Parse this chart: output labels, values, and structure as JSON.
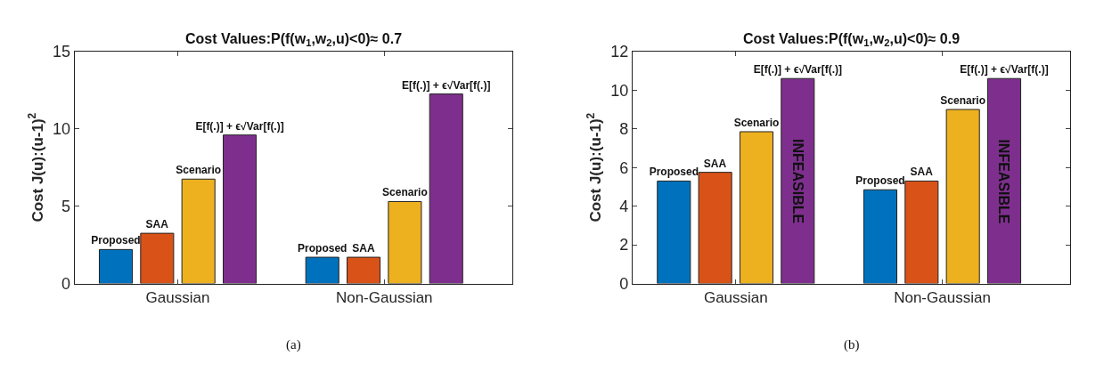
{
  "chart_data": [
    {
      "type": "bar",
      "title": "Cost Values:P(f(w$_{1}$,w$_{2}$,u)<0)≈ 0.7",
      "ylabel": "Cost J(u):(u-1)$^{2}$",
      "categories": [
        "Gaussian",
        "Non-Gaussian"
      ],
      "series": [
        {
          "name": "Proposed",
          "color": "#0072bd",
          "values": [
            2.2,
            1.7
          ]
        },
        {
          "name": "SAA",
          "color": "#d95319",
          "values": [
            3.25,
            1.7
          ]
        },
        {
          "name": "Scenario",
          "color": "#edb120",
          "values": [
            6.75,
            5.3
          ]
        },
        {
          "name": "E[f(.)] + ϵ√Var[f(.)]",
          "color": "#7e2f8e",
          "values": [
            9.6,
            12.25
          ]
        }
      ],
      "ylim": [
        0,
        15
      ],
      "yticks": [
        0,
        5,
        10,
        15
      ],
      "legend": false,
      "annotations": [
        "(a)"
      ]
    },
    {
      "type": "bar",
      "title": "Cost Values:P(f(w$_{1}$,w$_{2}$,u)<0)≈ 0.9",
      "ylabel": "Cost J(u):(u-1)$^{2}$",
      "categories": [
        "Gaussian",
        "Non-Gaussian"
      ],
      "series": [
        {
          "name": "Proposed",
          "color": "#0072bd",
          "values": [
            5.3,
            4.85
          ]
        },
        {
          "name": "SAA",
          "color": "#d95319",
          "values": [
            5.75,
            5.3
          ]
        },
        {
          "name": "Scenario",
          "color": "#edb120",
          "values": [
            7.85,
            9.0
          ]
        },
        {
          "name": "E[f(.)] + ϵ√Var[f(.)]",
          "color": "#7e2f8e",
          "values": [
            10.6,
            10.6
          ]
        }
      ],
      "ylim": [
        0,
        12
      ],
      "yticks": [
        0,
        2,
        4,
        6,
        8,
        10,
        12
      ],
      "legend": false,
      "annotations": [
        "INFEASIBLE",
        "INFEASIBLE",
        "(b)"
      ]
    }
  ]
}
